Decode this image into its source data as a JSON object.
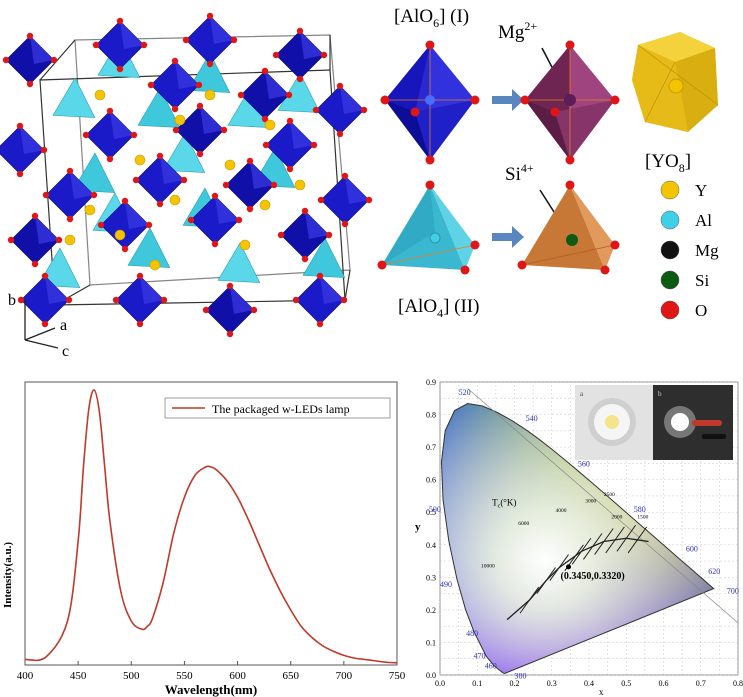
{
  "crystal": {
    "axes": {
      "b": "b",
      "a": "a",
      "c": "c"
    }
  },
  "polyhedra": {
    "alo6_label": "[AlO",
    "alo6_sub": "6",
    "alo6_suffix": "] (I)",
    "mg_label": "Mg",
    "mg_sup": "2+",
    "si_label": "Si",
    "si_sup": "4+",
    "alo4_label": "[AlO",
    "alo4_sub": "4",
    "alo4_suffix": "] (II)",
    "yo8_label": "[YO",
    "yo8_sub": "8",
    "yo8_suffix": "]"
  },
  "legend": [
    {
      "symbol": "Y",
      "color": "#f5c400"
    },
    {
      "symbol": "Al",
      "color": "#3fd0e6"
    },
    {
      "symbol": "Mg",
      "color": "#111111"
    },
    {
      "symbol": "Si",
      "color": "#0d5a12"
    },
    {
      "symbol": "O",
      "color": "#e01515"
    }
  ],
  "colors": {
    "octahedron": "#1a1ac8",
    "tetrahedron": "#3fc8dc",
    "mg_octahedron": "#9a3f7a",
    "si_tetrahedron": "#d8884a",
    "yo8": "#e8c020",
    "oxygen": "#e01515",
    "arrow": "#5a86c0",
    "spectrum_line": "#c0392b"
  },
  "chart_data": [
    {
      "type": "line",
      "title": "",
      "xlabel": "Wavelength(nm)",
      "ylabel": "Intensity(a.u.)",
      "xlim": [
        400,
        750
      ],
      "ylim": [
        0,
        1
      ],
      "xticks": [
        "400",
        "450",
        "500",
        "550",
        "600",
        "650",
        "700",
        "750"
      ],
      "legend": "The packaged w-LEDs lamp",
      "series": [
        {
          "name": "The packaged w-LEDs lamp",
          "x": [
            400,
            420,
            440,
            450,
            455,
            460,
            465,
            470,
            475,
            480,
            490,
            500,
            510,
            515,
            520,
            530,
            540,
            550,
            560,
            570,
            575,
            580,
            590,
            600,
            610,
            620,
            630,
            640,
            650,
            660,
            670,
            680,
            690,
            700,
            710,
            720,
            730,
            740,
            750
          ],
          "y": [
            0.02,
            0.03,
            0.16,
            0.45,
            0.72,
            0.93,
            1.0,
            0.92,
            0.72,
            0.52,
            0.27,
            0.16,
            0.13,
            0.14,
            0.17,
            0.3,
            0.48,
            0.61,
            0.69,
            0.72,
            0.72,
            0.71,
            0.67,
            0.61,
            0.53,
            0.44,
            0.35,
            0.27,
            0.2,
            0.14,
            0.1,
            0.07,
            0.05,
            0.035,
            0.025,
            0.02,
            0.015,
            0.01,
            0.008
          ]
        }
      ]
    },
    {
      "type": "scatter",
      "title": "",
      "xlabel": "x",
      "ylabel": "y",
      "xlim": [
        0,
        0.8
      ],
      "ylim": [
        0,
        0.9
      ],
      "xticks": [
        "0.0",
        "0.1",
        "0.2",
        "0.3",
        "0.4",
        "0.5",
        "0.6",
        "0.7",
        "0.8"
      ],
      "yticks": [
        "0.0",
        "0.1",
        "0.2",
        "0.3",
        "0.4",
        "0.5",
        "0.6",
        "0.7",
        "0.8",
        "0.9"
      ],
      "locus_labels": [
        "380",
        "460",
        "470",
        "480",
        "490",
        "500",
        "520",
        "540",
        "560",
        "580",
        "600",
        "620",
        "700"
      ],
      "planck_label": "T",
      "planck_sub": "c",
      "planck_unit": "(°K)",
      "cct_labels": [
        "10000",
        "6000",
        "4000",
        "3000",
        "2500",
        "2000",
        "1500"
      ],
      "point_label": "(0.3450,0.3320)",
      "point": {
        "x": 0.345,
        "y": 0.332
      }
    }
  ]
}
